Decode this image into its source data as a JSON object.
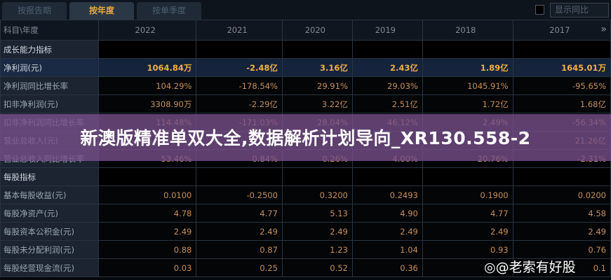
{
  "tabs": [
    "按报告期",
    "按年度",
    "按单季度"
  ],
  "active_tab": 1,
  "show_yoy_label": "显示同比",
  "header": {
    "label": "科目\\年度",
    "years": [
      "2022",
      "2021",
      "2020",
      "2019",
      "2018",
      "2017"
    ]
  },
  "rows": [
    {
      "type": "sec",
      "label": "成长能力指标",
      "values": [
        "",
        "",
        "",
        "",
        "",
        ""
      ]
    },
    {
      "type": "hl",
      "label": "净利润(元)",
      "values": [
        "1064.84万",
        "-2.48亿",
        "3.16亿",
        "2.43亿",
        "1.89亿",
        "1645.01万"
      ]
    },
    {
      "type": "row",
      "label": "净利润同比增长率",
      "values": [
        "104.29%",
        "-178.54%",
        "29.91%",
        "29.03%",
        "1045.91%",
        "-95.65%"
      ]
    },
    {
      "type": "row",
      "label": "扣非净利润(元)",
      "values": [
        "3308.90万",
        "-2.29亿",
        "3.22亿",
        "2.51亿",
        "1.72亿",
        "1.68亿"
      ]
    },
    {
      "type": "row",
      "label": "扣非净利润同比增长率",
      "values": [
        "114.48%",
        "-171.03%",
        "28.04%",
        "46.12%",
        "2.49%",
        "-56.34%"
      ]
    },
    {
      "type": "row",
      "label": "营业总收入(元)",
      "values": [
        "",
        "",
        "",
        "",
        "",
        "21.26亿"
      ]
    },
    {
      "type": "row",
      "label": "营业总收入同比增长率",
      "values": [
        "53.46%",
        "0.84%",
        "0.26%",
        "4.00%",
        "20.76%",
        "-2.31%"
      ]
    },
    {
      "type": "sec",
      "label": "每股指标",
      "values": [
        "",
        "",
        "",
        "",
        "",
        ""
      ]
    },
    {
      "type": "row",
      "label": "基本每股收益(元)",
      "values": [
        "0.0100",
        "-0.2500",
        "0.3200",
        "0.2493",
        "0.1900",
        "0.0200"
      ]
    },
    {
      "type": "row",
      "label": "每股净资产(元)",
      "values": [
        "4.78",
        "4.77",
        "5.13",
        "4.90",
        "4.77",
        "4.58"
      ]
    },
    {
      "type": "row",
      "label": "每股资本公积金(元)",
      "values": [
        "2.49",
        "2.49",
        "2.49",
        "2.49",
        "2.49",
        "2.49"
      ]
    },
    {
      "type": "row",
      "label": "每股未分配利润(元)",
      "values": [
        "0.88",
        "0.87",
        "1.23",
        "1.04",
        "0.93",
        "0.76"
      ]
    },
    {
      "type": "row",
      "label": "每股经营现金流(元)",
      "values": [
        "0.03",
        "0.25",
        "0.52",
        "0.36",
        "",
        "0.1"
      ]
    }
  ],
  "banner": "新澳版精准单双大全,数据解析计划导向_XR130.558-2",
  "watermark": "@老索有好股",
  "more_icon": "double-chevron-right-icon"
}
